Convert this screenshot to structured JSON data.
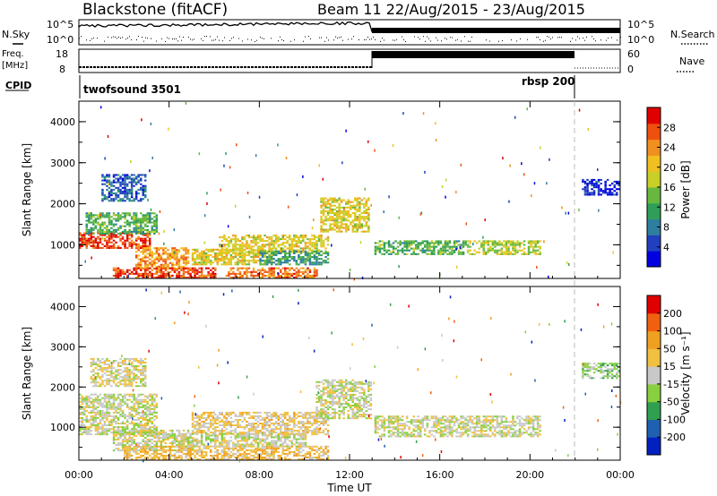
{
  "header": {
    "station": "Blackstone (fitACF)",
    "beam_info": "Beam 11 22/Aug/2015 - 23/Aug/2015"
  },
  "strip_labels": {
    "nsky": "N.Sky",
    "nsky_hi": "10^5",
    "nsky_lo": "10^0",
    "nsearch": "N.Search",
    "nsearch_hi": "10^5",
    "nsearch_lo": "10^0",
    "freq_top": "Freq.",
    "freq_unit": "[MHz]",
    "freq_hi": "18",
    "freq_lo": "8",
    "nave": "Nave",
    "nave_hi": "60",
    "nave_lo": "0",
    "cpid": "CPID",
    "mode1": "twofsound 3501",
    "mode2": "rbsp 200"
  },
  "axes": {
    "xlabel": "Time UT",
    "xticks": [
      "00:00",
      "04:00",
      "08:00",
      "12:00",
      "16:00",
      "20:00",
      "00:00"
    ],
    "ylabel": "Slant Range [km]",
    "yticks": [
      "1000",
      "2000",
      "3000",
      "4000"
    ]
  },
  "colorbars": {
    "power": {
      "label": "Power [dB]",
      "ticks": [
        "4",
        "8",
        "12",
        "16",
        "20",
        "24",
        "28"
      ]
    },
    "velocity": {
      "label": "Velocity [m s⁻¹]",
      "ticks": [
        "200",
        "100",
        "50",
        "15",
        "-15",
        "-50",
        "-100",
        "-200"
      ]
    }
  },
  "chart_data": [
    {
      "type": "heatmap",
      "name": "power",
      "x_unit": "hours UT",
      "xlim": [
        0,
        24
      ],
      "ylim": [
        180,
        4500
      ],
      "zlim": [
        0,
        30
      ],
      "colors": [
        "#0000e0",
        "#2040c0",
        "#2e7ea0",
        "#2e9e58",
        "#68b840",
        "#c8d028",
        "#f0c020",
        "#f09020",
        "#ee5010",
        "#e00000"
      ],
      "regions": [
        {
          "t0": 0.0,
          "t1": 3.2,
          "r0": 900,
          "r1": 1300,
          "z": 26
        },
        {
          "t0": 0.3,
          "t1": 3.5,
          "r0": 1250,
          "r1": 1750,
          "z": 12
        },
        {
          "t0": 1.0,
          "t1": 3.0,
          "r0": 2050,
          "r1": 2700,
          "z": 6
        },
        {
          "t0": 2.5,
          "t1": 4.8,
          "r0": 400,
          "r1": 900,
          "z": 22
        },
        {
          "t0": 1.5,
          "t1": 6.0,
          "r0": 180,
          "r1": 450,
          "z": 26
        },
        {
          "t0": 5.0,
          "t1": 8.5,
          "r0": 500,
          "r1": 900,
          "z": 18
        },
        {
          "t0": 6.2,
          "t1": 11.0,
          "r0": 800,
          "r1": 1250,
          "z": 18
        },
        {
          "t0": 8.0,
          "t1": 11.0,
          "r0": 500,
          "r1": 850,
          "z": 10
        },
        {
          "t0": 6.5,
          "t1": 10.5,
          "r0": 180,
          "r1": 450,
          "z": 24
        },
        {
          "t0": 10.7,
          "t1": 12.8,
          "r0": 1300,
          "r1": 2150,
          "z": 18
        },
        {
          "t0": 13.1,
          "t1": 17.2,
          "r0": 750,
          "r1": 1100,
          "z": 12
        },
        {
          "t0": 17.2,
          "t1": 20.5,
          "r0": 750,
          "r1": 1100,
          "z": 16
        },
        {
          "t0": 22.3,
          "t1": 24.0,
          "r0": 2200,
          "r1": 2600,
          "z": 3
        }
      ]
    },
    {
      "type": "heatmap",
      "name": "velocity",
      "x_unit": "hours UT",
      "xlim": [
        0,
        24
      ],
      "ylim": [
        180,
        4500
      ],
      "zlim": [
        -250,
        250
      ],
      "colors": [
        "#e00000",
        "#f06010",
        "#f0a020",
        "#f0c040",
        "#c8c8c8",
        "#88d040",
        "#30a050",
        "#2060b0",
        "#0020c0"
      ],
      "regions": [
        {
          "t0": 0.0,
          "t1": 3.5,
          "r0": 800,
          "r1": 1800,
          "z": 0
        },
        {
          "t0": 0.5,
          "t1": 3.0,
          "r0": 2000,
          "r1": 2700,
          "z": -20
        },
        {
          "t0": 1.5,
          "t1": 5.0,
          "r0": 400,
          "r1": 900,
          "z": 0
        },
        {
          "t0": 2.0,
          "t1": 11.0,
          "r0": 180,
          "r1": 500,
          "z": -60
        },
        {
          "t0": 5.0,
          "t1": 11.0,
          "r0": 800,
          "r1": 1350,
          "z": -40
        },
        {
          "t0": 4.5,
          "t1": 10.0,
          "r0": 500,
          "r1": 850,
          "z": 0
        },
        {
          "t0": 10.5,
          "t1": 12.9,
          "r0": 1200,
          "r1": 2150,
          "z": 5
        },
        {
          "t0": 13.1,
          "t1": 20.5,
          "r0": 750,
          "r1": 1250,
          "z": 0
        },
        {
          "t0": 22.3,
          "t1": 24.0,
          "r0": 2200,
          "r1": 2600,
          "z": 40
        }
      ]
    }
  ]
}
